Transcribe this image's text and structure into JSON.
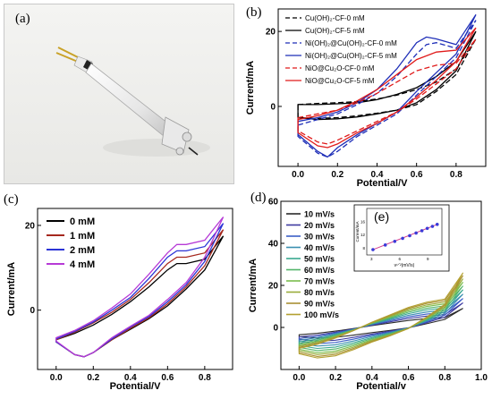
{
  "panels": {
    "a": {
      "label": "(a)"
    },
    "b": {
      "label": "(b)"
    },
    "c": {
      "label": "(c)"
    },
    "d": {
      "label": "(d)"
    },
    "e": {
      "label": "(e)"
    }
  },
  "chart_data": [
    {
      "panel": "b",
      "type": "line",
      "xlabel": "Potential/V",
      "ylabel": "Current/mA",
      "xlim": [
        -0.1,
        0.95
      ],
      "ylim": [
        -16,
        26
      ],
      "xticks": [
        0.0,
        0.2,
        0.4,
        0.6,
        0.8
      ],
      "xticklabels": [
        "0.0",
        "0.2",
        "0.4",
        "0.6",
        "0.8"
      ],
      "yticks": [
        0,
        20
      ],
      "yticklabels": [
        "0",
        "20"
      ],
      "legend": "top-left",
      "series": [
        {
          "name": "Cu(OH)₂-CF-0 mM",
          "color": "#000000",
          "dash": "dashed",
          "x": [
            0.0,
            0.1,
            0.2,
            0.3,
            0.4,
            0.5,
            0.6,
            0.7,
            0.8,
            0.9,
            0.8,
            0.7,
            0.6,
            0.5,
            0.4,
            0.3,
            0.2,
            0.1,
            0.0
          ],
          "y": [
            0.5,
            0.8,
            1.0,
            1.3,
            2.0,
            3.0,
            4.5,
            6.5,
            10.0,
            18.0,
            8.5,
            4.0,
            0.5,
            -1.0,
            -1.8,
            -2.5,
            -3.0,
            -3.2,
            -3.0
          ]
        },
        {
          "name": "Cu(OH)₂-CF-5 mM",
          "color": "#000000",
          "dash": "solid",
          "x": [
            0.0,
            0.1,
            0.2,
            0.3,
            0.4,
            0.5,
            0.6,
            0.7,
            0.8,
            0.9,
            0.8,
            0.7,
            0.6,
            0.5,
            0.4,
            0.3,
            0.2,
            0.1,
            0.0
          ],
          "y": [
            0.5,
            0.5,
            0.7,
            1.0,
            1.8,
            3.2,
            5.0,
            8.0,
            12.0,
            20.0,
            9.5,
            4.5,
            1.0,
            -1.0,
            -2.0,
            -2.8,
            -3.3,
            -3.5,
            -3.0
          ]
        },
        {
          "name": "Ni(OH)₂@Cu(OH)₂-CF-0 mM",
          "color": "#1f2fb8",
          "dash": "dashed",
          "x": [
            0.0,
            0.1,
            0.2,
            0.3,
            0.4,
            0.5,
            0.6,
            0.65,
            0.7,
            0.8,
            0.9,
            0.8,
            0.7,
            0.6,
            0.5,
            0.4,
            0.3,
            0.2,
            0.15,
            0.1,
            0.0
          ],
          "y": [
            -5.0,
            -3.5,
            -2.0,
            0.5,
            3.5,
            8.0,
            14.0,
            16.5,
            17.0,
            15.5,
            23.0,
            13.0,
            8.0,
            3.0,
            -2.0,
            -5.0,
            -8.0,
            -12.0,
            -13.5,
            -12.5,
            -8.0
          ]
        },
        {
          "name": "Ni(OH)₂@Cu(OH)₂-CF-5 mM",
          "color": "#1f2fb8",
          "dash": "solid",
          "x": [
            0.0,
            0.1,
            0.2,
            0.3,
            0.4,
            0.5,
            0.6,
            0.65,
            0.7,
            0.8,
            0.9,
            0.8,
            0.7,
            0.6,
            0.5,
            0.4,
            0.3,
            0.2,
            0.15,
            0.1,
            0.0
          ],
          "y": [
            -4.0,
            -3.0,
            -1.5,
            1.0,
            4.5,
            10.0,
            17.0,
            18.5,
            18.0,
            16.5,
            24.5,
            14.0,
            9.0,
            4.0,
            -1.5,
            -4.5,
            -7.5,
            -11.0,
            -13.5,
            -12.0,
            -7.5
          ]
        },
        {
          "name": "NiO@Cu₂O-CF-0 mM",
          "color": "#e01b1b",
          "dash": "dashed",
          "x": [
            0.0,
            0.1,
            0.2,
            0.3,
            0.4,
            0.5,
            0.6,
            0.7,
            0.8,
            0.9,
            0.8,
            0.7,
            0.6,
            0.5,
            0.4,
            0.3,
            0.2,
            0.15,
            0.1,
            0.0
          ],
          "y": [
            -3.0,
            -2.0,
            -1.0,
            1.0,
            3.5,
            6.5,
            9.5,
            11.0,
            11.5,
            18.0,
            10.0,
            6.0,
            2.0,
            -1.5,
            -4.0,
            -6.5,
            -9.0,
            -10.0,
            -9.5,
            -6.5
          ]
        },
        {
          "name": "NiO@Cu₂O-CF-5 mM",
          "color": "#e01b1b",
          "dash": "solid",
          "x": [
            0.0,
            0.1,
            0.2,
            0.3,
            0.4,
            0.5,
            0.6,
            0.7,
            0.8,
            0.9,
            0.8,
            0.7,
            0.6,
            0.5,
            0.4,
            0.3,
            0.2,
            0.15,
            0.1,
            0.0
          ],
          "y": [
            -3.5,
            -2.5,
            -1.0,
            1.5,
            4.5,
            8.5,
            12.5,
            14.5,
            15.0,
            21.0,
            12.0,
            7.0,
            2.5,
            -1.5,
            -4.5,
            -7.0,
            -10.0,
            -11.0,
            -10.5,
            -7.0
          ]
        }
      ]
    },
    {
      "panel": "c",
      "type": "line",
      "xlabel": "Potential/V",
      "ylabel": "Current/mA",
      "xlim": [
        -0.1,
        0.95
      ],
      "ylim": [
        -14,
        24
      ],
      "xticks": [
        0.0,
        0.2,
        0.4,
        0.6,
        0.8
      ],
      "xticklabels": [
        "0.0",
        "0.2",
        "0.4",
        "0.6",
        "0.8"
      ],
      "yticks": [
        0,
        20
      ],
      "yticklabels": [
        "0",
        "20"
      ],
      "legend": "top-left",
      "series": [
        {
          "name": "0 mM",
          "color": "#000000",
          "x": [
            0.0,
            0.1,
            0.2,
            0.3,
            0.4,
            0.5,
            0.6,
            0.65,
            0.7,
            0.8,
            0.9,
            0.8,
            0.7,
            0.6,
            0.5,
            0.4,
            0.3,
            0.2,
            0.15,
            0.1,
            0.0
          ],
          "y": [
            -7.0,
            -5.5,
            -3.5,
            -1.0,
            2.0,
            5.5,
            9.5,
            11.0,
            11.0,
            12.0,
            17.5,
            9.5,
            5.0,
            1.0,
            -2.0,
            -4.5,
            -7.0,
            -10.0,
            -11.0,
            -10.5,
            -7.5
          ]
        },
        {
          "name": "1 mM",
          "color": "#a5281e",
          "x": [
            0.0,
            0.1,
            0.2,
            0.3,
            0.4,
            0.5,
            0.6,
            0.65,
            0.7,
            0.8,
            0.9,
            0.8,
            0.7,
            0.6,
            0.5,
            0.4,
            0.3,
            0.2,
            0.15,
            0.1,
            0.0
          ],
          "y": [
            -7.0,
            -5.2,
            -3.0,
            -0.5,
            2.5,
            6.5,
            11.0,
            12.5,
            12.5,
            13.5,
            19.0,
            10.5,
            5.5,
            1.5,
            -1.8,
            -4.3,
            -7.0,
            -10.0,
            -11.0,
            -10.5,
            -7.5
          ]
        },
        {
          "name": "2 mM",
          "color": "#2b34d6",
          "x": [
            0.0,
            0.1,
            0.2,
            0.3,
            0.4,
            0.5,
            0.6,
            0.65,
            0.7,
            0.8,
            0.9,
            0.8,
            0.7,
            0.6,
            0.5,
            0.4,
            0.3,
            0.2,
            0.15,
            0.1,
            0.0
          ],
          "y": [
            -6.8,
            -5.0,
            -2.8,
            0.0,
            3.0,
            7.5,
            12.5,
            14.0,
            14.0,
            15.0,
            20.5,
            11.5,
            6.0,
            2.0,
            -1.5,
            -4.0,
            -6.8,
            -10.0,
            -11.0,
            -10.5,
            -7.5
          ]
        },
        {
          "name": "4 mM",
          "color": "#b63ad6",
          "x": [
            0.0,
            0.1,
            0.2,
            0.3,
            0.4,
            0.5,
            0.6,
            0.65,
            0.7,
            0.8,
            0.9,
            0.8,
            0.7,
            0.6,
            0.5,
            0.4,
            0.3,
            0.2,
            0.15,
            0.1,
            0.0
          ],
          "y": [
            -6.5,
            -4.8,
            -2.5,
            0.5,
            3.8,
            8.5,
            13.5,
            15.5,
            15.5,
            16.5,
            22.0,
            12.5,
            6.5,
            2.5,
            -1.2,
            -3.8,
            -6.5,
            -10.0,
            -11.0,
            -10.5,
            -7.3
          ]
        }
      ]
    },
    {
      "panel": "d",
      "type": "line",
      "xlabel": "Potential/v",
      "ylabel": "Current/mA",
      "xlim": [
        -0.1,
        1.0
      ],
      "ylim": [
        -20,
        60
      ],
      "xticks": [
        0.0,
        0.2,
        0.4,
        0.6,
        0.8,
        1.0
      ],
      "xticklabels": [
        "0.0",
        "0.2",
        "0.4",
        "0.6",
        "0.8",
        "1.0"
      ],
      "yticks": [
        0,
        20,
        40,
        60
      ],
      "yticklabels": [
        "0",
        "20",
        "40",
        "60"
      ],
      "legend": "left",
      "series": [
        {
          "name": "10 mV/s",
          "color": "#2a2a2a",
          "scale": 0.35
        },
        {
          "name": "20 mV/s",
          "color": "#3e3aa0",
          "scale": 0.45
        },
        {
          "name": "30 mV/s",
          "color": "#3b5fc7",
          "scale": 0.53
        },
        {
          "name": "40 mV/s",
          "color": "#3a8fb0",
          "scale": 0.61
        },
        {
          "name": "50 mV/s",
          "color": "#3aa88f",
          "scale": 0.69
        },
        {
          "name": "60 mV/s",
          "color": "#52b56a",
          "scale": 0.76
        },
        {
          "name": "70 mV/s",
          "color": "#7bbd4e",
          "scale": 0.83
        },
        {
          "name": "80 mV/s",
          "color": "#9aac3a",
          "scale": 0.89
        },
        {
          "name": "90 mV/s",
          "color": "#a98f33",
          "scale": 0.95
        },
        {
          "name": "100 mV/s",
          "color": "#b3a030",
          "scale": 1.0
        }
      ],
      "base_cycle": {
        "x": [
          0.0,
          0.1,
          0.2,
          0.3,
          0.4,
          0.5,
          0.6,
          0.7,
          0.8,
          0.9,
          0.8,
          0.7,
          0.6,
          0.5,
          0.4,
          0.3,
          0.2,
          0.1,
          0.0
        ],
        "y": [
          -10.0,
          -8.0,
          -5.0,
          -1.5,
          2.5,
          6.0,
          9.5,
          12.0,
          13.5,
          26.0,
          11.0,
          5.0,
          -0.5,
          -4.0,
          -7.0,
          -10.5,
          -13.5,
          -14.5,
          -12.5
        ]
      }
    },
    {
      "panel": "e",
      "type": "scatter",
      "xlabel": "v¹ᐟ²(mV/s)",
      "ylabel": "Current/mA",
      "xlim": [
        2.5,
        10.5
      ],
      "ylim": [
        6,
        20
      ],
      "xticks": [
        3,
        6,
        9
      ],
      "xticklabels": [
        "3",
        "6",
        "9"
      ],
      "yticks": [
        8,
        12,
        16
      ],
      "yticklabels": [
        "8",
        "12",
        "16"
      ],
      "x": [
        3.16,
        4.47,
        5.48,
        6.32,
        7.07,
        7.75,
        8.37,
        8.94,
        9.49,
        10.0
      ],
      "y": [
        7.6,
        9.0,
        10.1,
        11.0,
        11.8,
        12.6,
        13.3,
        14.0,
        14.6,
        15.2
      ],
      "marker_color": "#3a3ad8",
      "fit_color": "#d43a8a"
    }
  ]
}
